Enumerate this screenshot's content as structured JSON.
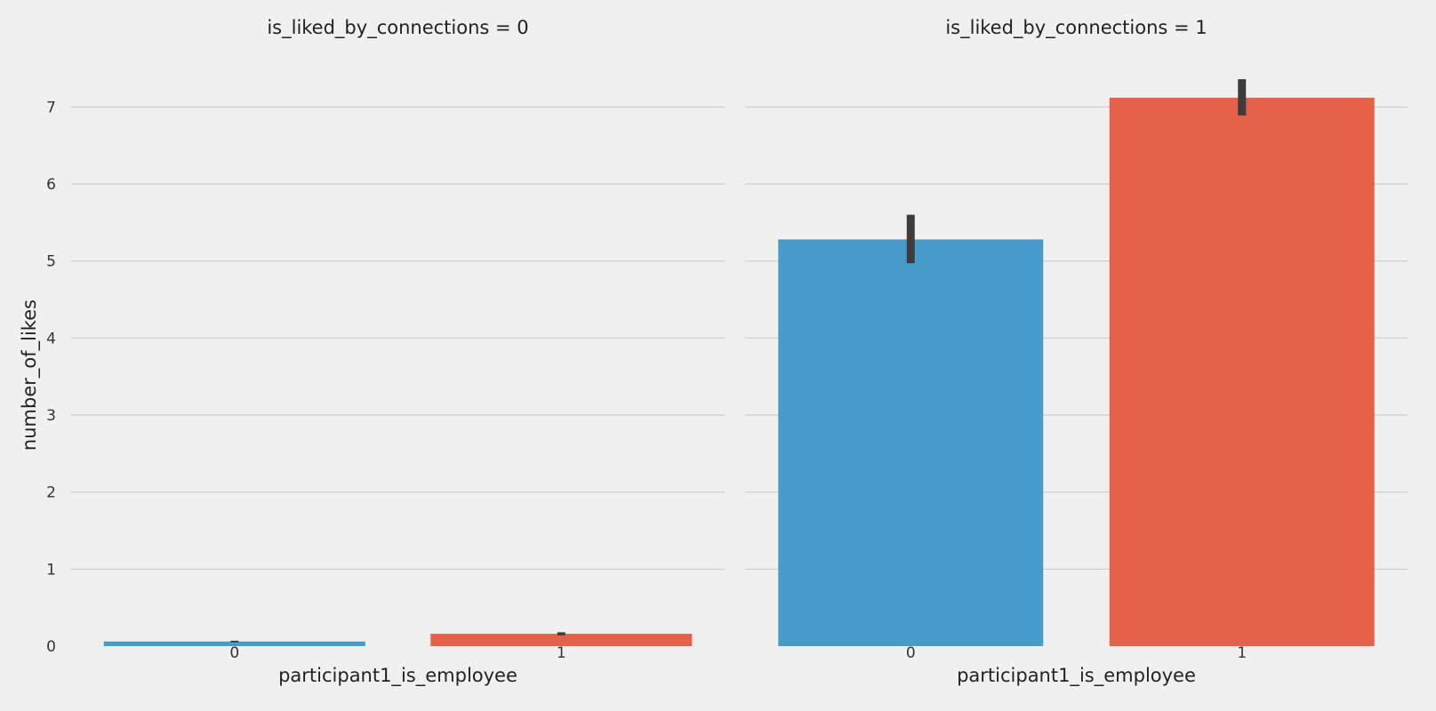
{
  "chart_data": [
    {
      "type": "bar",
      "title": "is_liked_by_connections = 0",
      "xlabel": "participant1_is_employee",
      "ylabel": "number_of_likes",
      "categories": [
        "0",
        "1"
      ],
      "values": [
        0.06,
        0.16
      ],
      "error_bars": [
        [
          0.05,
          0.07
        ],
        [
          0.14,
          0.18
        ]
      ],
      "colors": [
        "#469bc8",
        "#e5614a"
      ],
      "ylim": [
        0,
        7.5
      ],
      "yticks": [
        "0",
        "1",
        "2",
        "3",
        "4",
        "5",
        "6",
        "7"
      ],
      "grid": true
    },
    {
      "type": "bar",
      "title": "is_liked_by_connections = 1",
      "xlabel": "participant1_is_employee",
      "ylabel": "",
      "categories": [
        "0",
        "1"
      ],
      "values": [
        5.28,
        7.12
      ],
      "error_bars": [
        [
          4.97,
          5.6
        ],
        [
          6.89,
          7.36
        ]
      ],
      "colors": [
        "#469bc8",
        "#e5614a"
      ],
      "ylim": [
        0,
        7.5
      ],
      "yticks": [],
      "grid": true
    }
  ],
  "style": {
    "background": "#f0f0f0",
    "grid_color": "#cbcbcb",
    "errorbar_color": "#3c3c3c"
  }
}
